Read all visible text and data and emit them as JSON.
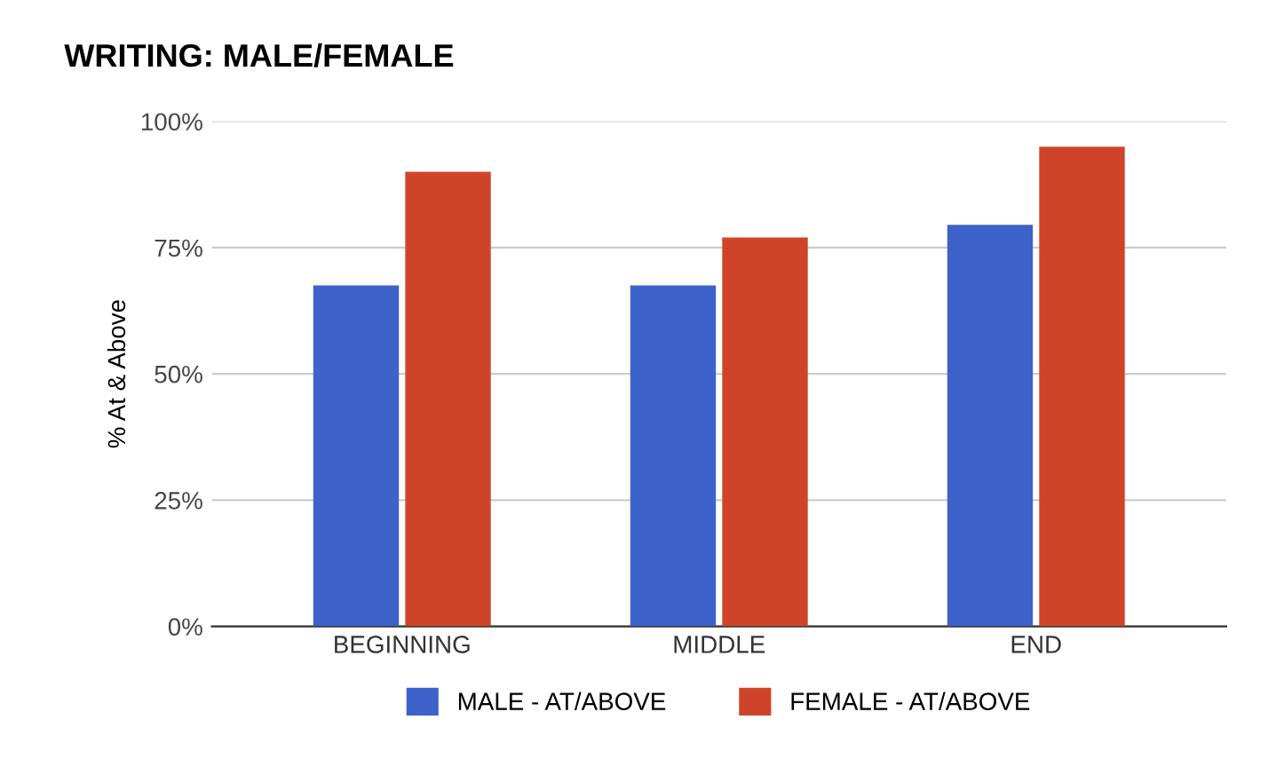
{
  "chart_data": {
    "type": "bar",
    "title": "WRITING: MALE/FEMALE",
    "ylabel": "% At & Above",
    "categories": [
      "BEGINNING",
      "MIDDLE",
      "END"
    ],
    "series": [
      {
        "name": "MALE - AT/ABOVE",
        "color": "#3d62c9",
        "values": [
          67.5,
          67.5,
          79.5
        ]
      },
      {
        "name": "FEMALE - AT/ABOVE",
        "color": "#cf4428",
        "values": [
          90,
          77,
          95
        ]
      }
    ],
    "ylim": [
      0,
      100
    ],
    "yticks": [
      {
        "value": 0,
        "label": "0%"
      },
      {
        "value": 25,
        "label": "25%"
      },
      {
        "value": 50,
        "label": "50%"
      },
      {
        "value": 75,
        "label": "75%"
      },
      {
        "value": 100,
        "label": "100%"
      }
    ],
    "grid": "y",
    "legend": "bottom"
  }
}
